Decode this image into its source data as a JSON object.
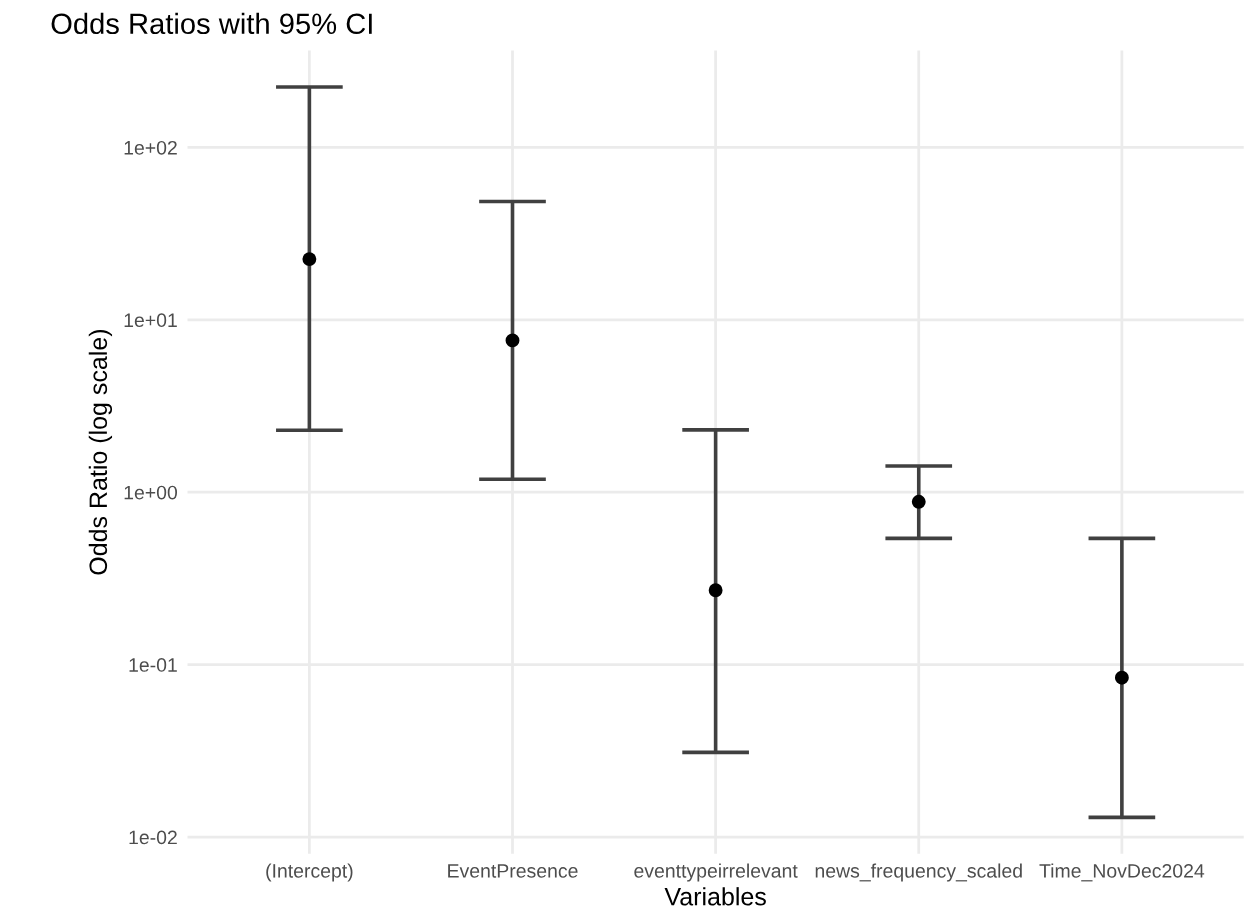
{
  "chart_data": {
    "type": "scatter",
    "title": "Odds Ratios with 95% CI",
    "xlabel": "Variables",
    "ylabel": "Odds Ratio (log scale)",
    "categories": [
      "(Intercept)",
      "EventPresence",
      "eventtypeirrelevant",
      "news_frequency_scaled",
      "Time_NovDec2024"
    ],
    "series": [
      {
        "color": "#000000",
        "values": [
          22.5,
          7.6,
          0.27,
          0.88,
          0.084
        ],
        "errors": [
          [
            2.29,
            224
          ],
          [
            1.19,
            48.6
          ],
          [
            0.031,
            2.3
          ],
          [
            0.54,
            1.42
          ],
          [
            0.013,
            0.54
          ]
        ]
      }
    ],
    "log": "y",
    "ylim": [
      0.008,
      365
    ],
    "yticks": [
      {
        "value": 0.01,
        "label": "1e-02"
      },
      {
        "value": 0.1,
        "label": "1e-01"
      },
      {
        "value": 1,
        "label": "1e+00"
      },
      {
        "value": 10,
        "label": "1e+01"
      },
      {
        "value": 100,
        "label": "1e+02"
      }
    ],
    "grid": true,
    "marker": "circle"
  }
}
